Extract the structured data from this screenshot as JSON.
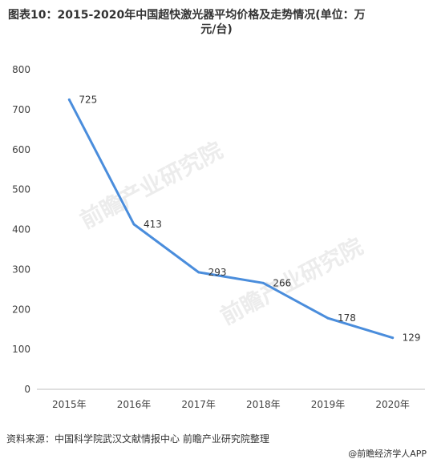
{
  "title": {
    "line1": "图表10：2015-2020年中国超快激光器平均价格及走势情况(单位：万",
    "line2": "元/台)"
  },
  "source": "资料来源：中国科学院武汉文献情报中心 前瞻产业研究院整理",
  "footer": "@前瞻经济学人APP",
  "watermark": "前瞻产业研究院",
  "colors": {
    "line": "#4a8ddc",
    "axis": "#bfbfbf",
    "text": "#404040"
  },
  "chart_data": {
    "type": "line",
    "categories": [
      "2015年",
      "2016年",
      "2017年",
      "2018年",
      "2019年",
      "2020年"
    ],
    "values": [
      725,
      413,
      293,
      266,
      178,
      129
    ],
    "ylim": [
      0,
      800
    ],
    "yticks": [
      0,
      100,
      200,
      300,
      400,
      500,
      600,
      700,
      800
    ],
    "grid": false,
    "legend": "none"
  }
}
